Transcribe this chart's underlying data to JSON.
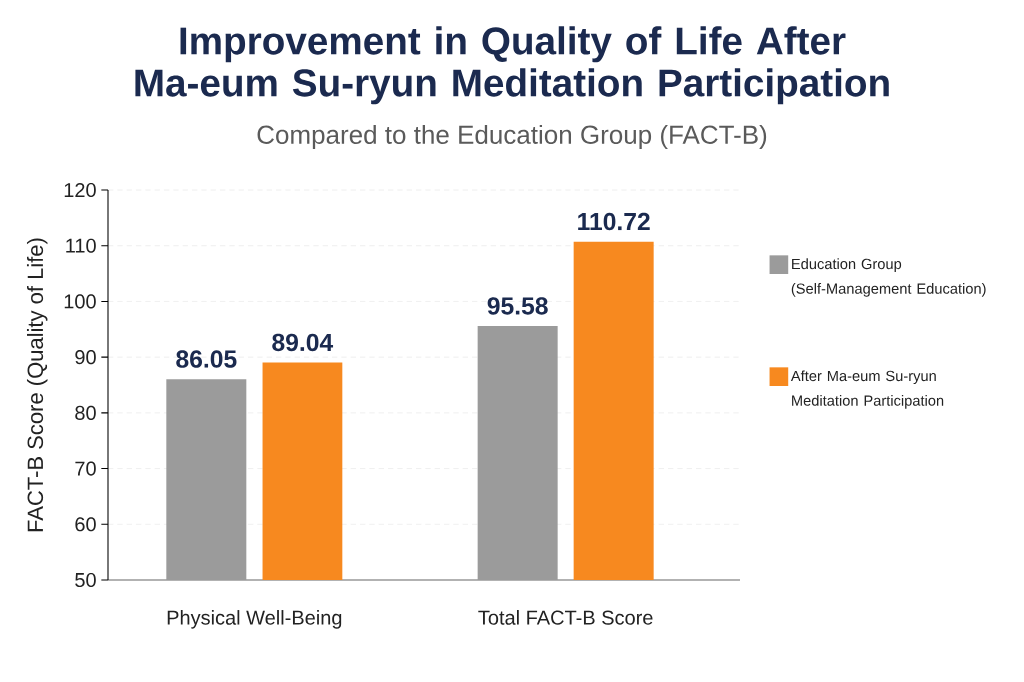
{
  "chart_data": {
    "type": "bar",
    "title": "Improvement in Quality of Life After Ma-eum Su-ryun Meditation Participation",
    "subtitle": "Compared to the Education Group (FACT-B)",
    "ylabel": "FACT-B Score (Quality of Life)",
    "categories": [
      "Physical Well-Being",
      "Total FACT-B Score"
    ],
    "series": [
      {
        "name": "Education Group (Self-Management Education)",
        "color": "#9b9b9b",
        "values": [
          86.05,
          95.58
        ]
      },
      {
        "name": "After Ma-eum Su-ryun Meditation Participation",
        "color": "#f7891f",
        "values": [
          89.04,
          110.72
        ]
      }
    ],
    "ylim": [
      50,
      120
    ],
    "yticks": [
      50,
      60,
      70,
      80,
      90,
      100,
      110,
      120
    ],
    "grid": "y",
    "legend": "right",
    "data_labels": true
  }
}
